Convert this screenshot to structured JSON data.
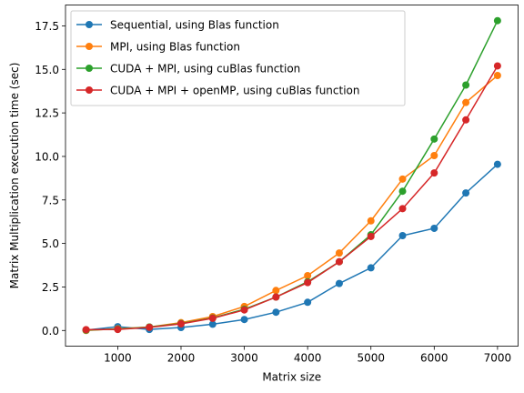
{
  "chart_data": {
    "type": "line",
    "title": "",
    "xlabel": "Matrix size",
    "ylabel": "Matrix Multiplication execution time (sec)",
    "xlim": [
      175,
      7325
    ],
    "ylim": [
      -0.9,
      18.7
    ],
    "xticks": [
      1000,
      2000,
      3000,
      4000,
      5000,
      6000,
      7000
    ],
    "xtick_labels": [
      "1000",
      "2000",
      "3000",
      "4000",
      "5000",
      "6000",
      "7000"
    ],
    "yticks": [
      0.0,
      2.5,
      5.0,
      7.5,
      10.0,
      12.5,
      15.0,
      17.5
    ],
    "ytick_labels": [
      "0.0",
      "2.5",
      "5.0",
      "7.5",
      "10.0",
      "12.5",
      "15.0",
      "17.5"
    ],
    "grid": false,
    "legend_position": "upper-left",
    "x": [
      500,
      1000,
      1500,
      2000,
      2500,
      3000,
      3500,
      4000,
      4500,
      5000,
      5500,
      6000,
      6500,
      7000
    ],
    "series": [
      {
        "name": "Sequential, using Blas function",
        "color": "#1f77b4",
        "values": [
          0.02,
          0.22,
          0.06,
          0.17,
          0.36,
          0.63,
          1.05,
          1.62,
          2.7,
          3.6,
          5.45,
          5.87,
          7.9,
          9.55
        ]
      },
      {
        "name": "MPI, using Blas function",
        "color": "#ff7f0e",
        "values": [
          0.0,
          0.1,
          0.2,
          0.45,
          0.8,
          1.38,
          2.3,
          3.15,
          4.45,
          6.3,
          8.7,
          10.05,
          13.1,
          14.65
        ]
      },
      {
        "name": "CUDA + MPI, using cuBlas function",
        "color": "#2ca02c",
        "values": [
          0.02,
          0.08,
          0.2,
          0.4,
          0.72,
          1.22,
          1.92,
          2.8,
          3.95,
          5.5,
          8.0,
          11.0,
          14.1,
          17.8
        ]
      },
      {
        "name": "CUDA + MPI + openMP, using cuBlas function",
        "color": "#d62728",
        "values": [
          0.05,
          0.06,
          0.18,
          0.38,
          0.7,
          1.18,
          1.92,
          2.75,
          3.95,
          5.4,
          7.0,
          9.05,
          12.1,
          15.2
        ]
      }
    ]
  }
}
